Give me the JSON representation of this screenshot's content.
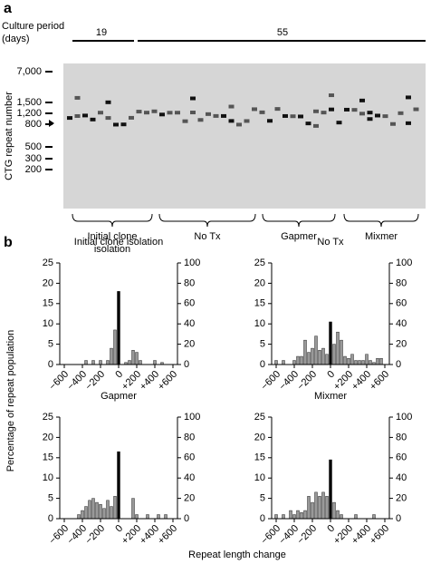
{
  "panel_a": {
    "label": "a",
    "culture_label": "Culture period (days)",
    "periods": [
      "19",
      "55"
    ],
    "ylabel": "CTG repeat number",
    "ladder": [
      "7,000",
      "1,500",
      "1,200",
      "800",
      "500",
      "300",
      "200"
    ],
    "groups": [
      "Initial clone isolation",
      "No Tx",
      "Gapmer",
      "Mixmer"
    ]
  },
  "panel_b": {
    "label": "b",
    "ylabel": "Percentage of repeat population",
    "xlabel": "Repeat length change"
  },
  "chart_data": [
    {
      "type": "histogram",
      "title": "Initial clone isolation",
      "bins": [
        -620,
        -580,
        -540,
        -500,
        -460,
        -420,
        -380,
        -340,
        -300,
        -260,
        -220,
        -180,
        -140,
        -100,
        -60,
        -20,
        20,
        60,
        100,
        140,
        180,
        220,
        260,
        300,
        340,
        380,
        420,
        460,
        500,
        540,
        580,
        620
      ],
      "values": [
        0,
        0,
        0,
        0,
        0,
        0,
        1,
        0,
        1,
        0,
        1,
        0,
        1,
        4,
        8.5,
        18,
        0,
        0.5,
        1,
        3.5,
        3,
        1,
        0,
        0,
        0,
        1,
        0,
        0.5,
        0,
        0,
        0
      ],
      "color": "#999999",
      "zero_color": "#000000",
      "xlim": [
        -650,
        650
      ],
      "xticks": [
        {
          "value": -600,
          "label": "−600"
        },
        {
          "value": -400,
          "label": "−400"
        },
        {
          "value": -200,
          "label": "−200"
        },
        0,
        {
          "value": 200,
          "label": "+200"
        },
        {
          "value": 400,
          "label": "+400"
        },
        {
          "value": 600,
          "label": "+600"
        }
      ],
      "ylim": [
        0,
        25
      ],
      "yticks": [
        0,
        5,
        10,
        15,
        20,
        25
      ],
      "y2lim": [
        0,
        100
      ],
      "y2ticks": [
        0,
        20,
        40,
        60,
        80,
        100
      ]
    },
    {
      "type": "histogram",
      "title": "No Tx",
      "bins": [
        -620,
        -580,
        -540,
        -500,
        -460,
        -420,
        -380,
        -340,
        -300,
        -260,
        -220,
        -180,
        -140,
        -100,
        -60,
        -20,
        20,
        60,
        100,
        140,
        180,
        220,
        260,
        300,
        340,
        380,
        420,
        460,
        500,
        540,
        580,
        620
      ],
      "values": [
        1,
        0,
        1,
        0,
        0,
        1,
        2,
        2,
        6,
        3,
        4,
        7,
        3.5,
        4,
        2.5,
        10.5,
        5,
        8,
        6,
        2,
        1.5,
        2.5,
        1,
        1,
        1,
        2.5,
        1,
        0.5,
        1.5,
        1.5,
        0
      ],
      "color": "#999999",
      "zero_color": "#000000",
      "xlim": [
        -650,
        650
      ],
      "xticks": [
        {
          "value": -600,
          "label": "−600"
        },
        {
          "value": -400,
          "label": "−400"
        },
        {
          "value": -200,
          "label": "−200"
        },
        0,
        {
          "value": 200,
          "label": "+200"
        },
        {
          "value": 400,
          "label": "+400"
        },
        {
          "value": 600,
          "label": "+600"
        }
      ],
      "ylim": [
        0,
        25
      ],
      "yticks": [
        0,
        5,
        10,
        15,
        20,
        25
      ],
      "y2lim": [
        0,
        100
      ],
      "y2ticks": [
        0,
        20,
        40,
        60,
        80,
        100
      ]
    },
    {
      "type": "histogram",
      "title": "Gapmer",
      "bins": [
        -620,
        -580,
        -540,
        -500,
        -460,
        -420,
        -380,
        -340,
        -300,
        -260,
        -220,
        -180,
        -140,
        -100,
        -60,
        -20,
        20,
        60,
        100,
        140,
        180,
        220,
        260,
        300,
        340,
        380,
        420,
        460,
        500,
        540,
        580,
        620
      ],
      "values": [
        0,
        0,
        0,
        0,
        1,
        2,
        3,
        4.5,
        5,
        4,
        3.5,
        2.5,
        4.5,
        3,
        5.5,
        16.5,
        0,
        0,
        0,
        5,
        1,
        0,
        0,
        1,
        0,
        0,
        1,
        0,
        1,
        0,
        0
      ],
      "color": "#999999",
      "zero_color": "#000000",
      "xlim": [
        -650,
        650
      ],
      "xticks": [
        {
          "value": -600,
          "label": "−600"
        },
        {
          "value": -400,
          "label": "−400"
        },
        {
          "value": -200,
          "label": "−200"
        },
        0,
        {
          "value": 200,
          "label": "+200"
        },
        {
          "value": 400,
          "label": "+400"
        },
        {
          "value": 600,
          "label": "+600"
        }
      ],
      "ylim": [
        0,
        25
      ],
      "yticks": [
        0,
        5,
        10,
        15,
        20,
        25
      ],
      "y2lim": [
        0,
        100
      ],
      "y2ticks": [
        0,
        20,
        40,
        60,
        80,
        100
      ]
    },
    {
      "type": "histogram",
      "title": "Mixmer",
      "bins": [
        -620,
        -580,
        -540,
        -500,
        -460,
        -420,
        -380,
        -340,
        -300,
        -260,
        -220,
        -180,
        -140,
        -100,
        -60,
        -20,
        20,
        60,
        100,
        140,
        180,
        220,
        260,
        300,
        340,
        380,
        420,
        460,
        500,
        540,
        580,
        620
      ],
      "values": [
        1,
        0,
        1,
        0,
        2,
        1,
        2,
        1.5,
        2,
        5.5,
        4,
        6.5,
        5.5,
        6.5,
        5.5,
        14.5,
        4,
        2,
        1,
        0,
        0,
        0,
        1,
        0,
        0,
        0,
        0,
        1,
        0,
        0,
        0
      ],
      "color": "#999999",
      "zero_color": "#000000",
      "xlim": [
        -650,
        650
      ],
      "xticks": [
        {
          "value": -600,
          "label": "−600"
        },
        {
          "value": -400,
          "label": "−400"
        },
        {
          "value": -200,
          "label": "−200"
        },
        0,
        {
          "value": 200,
          "label": "+200"
        },
        {
          "value": 400,
          "label": "+400"
        },
        {
          "value": 600,
          "label": "+600"
        }
      ],
      "ylim": [
        0,
        25
      ],
      "yticks": [
        0,
        5,
        10,
        15,
        20,
        25
      ],
      "y2lim": [
        0,
        100
      ],
      "y2ticks": [
        0,
        20,
        40,
        60,
        80,
        100
      ]
    }
  ]
}
